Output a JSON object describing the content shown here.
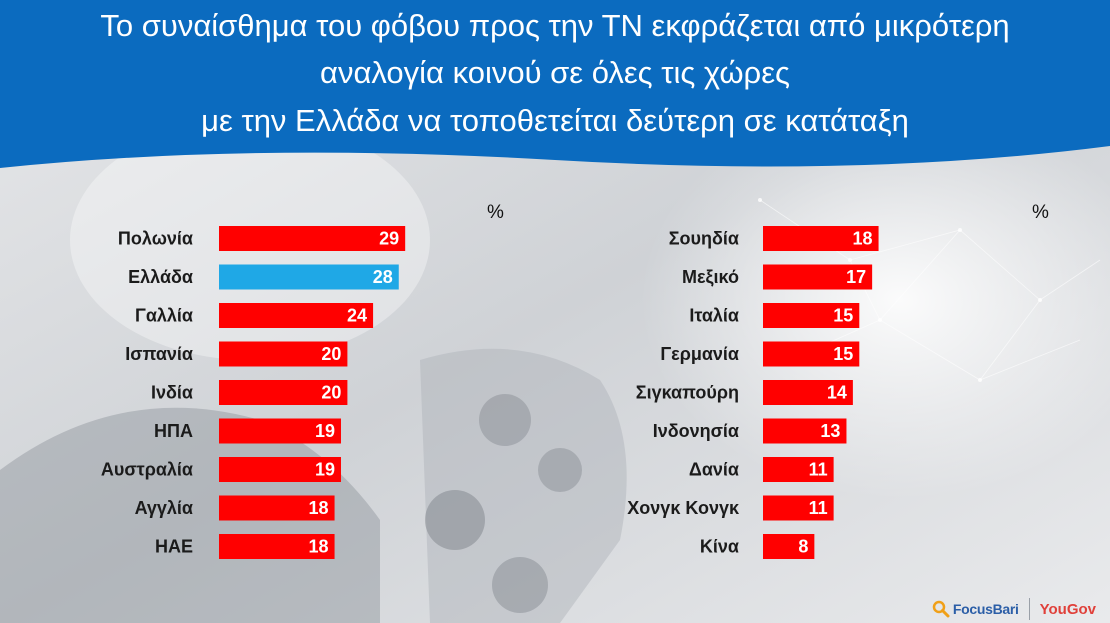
{
  "title_lines": [
    "Το συναίσθημα του φόβου προς την ΤΝ εκφράζεται από μικρότερη",
    "αναλογία κοινού  σε όλες τις χώρες",
    "με την Ελλάδα να τοποθετείται δεύτερη σε κατάταξη"
  ],
  "colors": {
    "header": "#0b6bbf",
    "bar": "#ff0000",
    "highlight": "#1fa8e6"
  },
  "logos": {
    "left": "FocusBari",
    "right": "YouGov"
  },
  "chart_data": [
    {
      "type": "bar",
      "orientation": "horizontal",
      "unit_label": "%",
      "highlight": "Ελλάδα",
      "categories": [
        "Πολωνία",
        "Ελλάδα",
        "Γαλλία",
        "Ισπανία",
        "Ινδία",
        "ΗΠΑ",
        "Αυστραλία",
        "Αγγλία",
        "ΗΑΕ"
      ],
      "values": [
        29,
        28,
        24,
        20,
        20,
        19,
        19,
        18,
        18
      ]
    },
    {
      "type": "bar",
      "orientation": "horizontal",
      "unit_label": "%",
      "categories": [
        "Σουηδία",
        "Μεξικό",
        "Ιταλία",
        "Γερμανία",
        "Σιγκαπούρη",
        "Ινδονησία",
        "Δανία",
        "Χονγκ Κονγκ",
        "Κίνα"
      ],
      "values": [
        18,
        17,
        15,
        15,
        14,
        13,
        11,
        11,
        8
      ]
    }
  ]
}
